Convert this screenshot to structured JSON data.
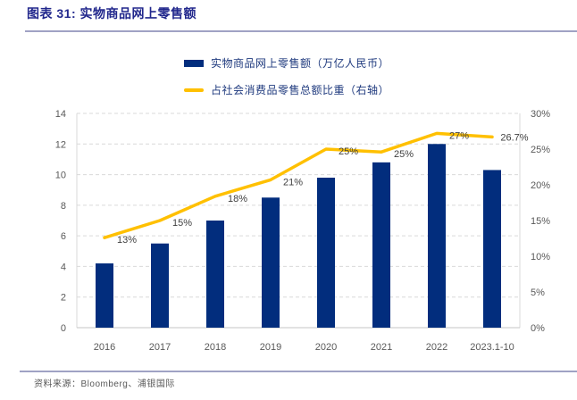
{
  "title": "图表 31: 实物商品网上零售额",
  "source": {
    "label": "资料来源：",
    "text": "Bloomberg、浦银国际"
  },
  "legend": [
    {
      "label": "实物商品网上零售额（万亿人民币）",
      "type": "bar"
    },
    {
      "label": "占社会消费品零售总额比重（右轴）",
      "type": "line"
    }
  ],
  "colors": {
    "bar": "#022d7d",
    "line": "#ffc000",
    "title_text": "#21278c",
    "legend_text": "#1f3a7e",
    "axis_text": "#595959",
    "label_text": "#404040",
    "rule": "#a0a2c4",
    "grid": "#d9d9d9",
    "plot_border": "#d9d9d9",
    "baseline": "#c6c6c6"
  },
  "chart_data": {
    "type": "bar+line combo",
    "categories": [
      "2016",
      "2017",
      "2018",
      "2019",
      "2020",
      "2021",
      "2022",
      "2023.1-10"
    ],
    "series": [
      {
        "name": "实物商品网上零售额（万亿人民币）",
        "type": "bar",
        "axis": "left",
        "values": [
          4.2,
          5.5,
          7.0,
          8.5,
          9.8,
          10.8,
          12.0,
          10.3
        ]
      },
      {
        "name": "占社会消费品零售总额比重（右轴）",
        "type": "line",
        "axis": "right",
        "values": [
          12.6,
          15.0,
          18.4,
          20.7,
          25.0,
          24.6,
          27.2,
          26.7
        ],
        "point_labels": [
          "13%",
          "15%",
          "18%",
          "21%",
          "25%",
          "25%",
          "27%",
          "26.7%"
        ]
      }
    ],
    "left_axis": {
      "min": 0,
      "max": 14,
      "step": 2,
      "ticks": [
        "0",
        "2",
        "4",
        "6",
        "8",
        "10",
        "12",
        "14"
      ]
    },
    "right_axis": {
      "min": 0,
      "max": 30,
      "step": 5,
      "ticks": [
        "0%",
        "5%",
        "10%",
        "15%",
        "20%",
        "25%",
        "30%"
      ]
    },
    "grid": "dashed horizontal gridlines at left-axis steps",
    "legend_position": "top-center"
  }
}
